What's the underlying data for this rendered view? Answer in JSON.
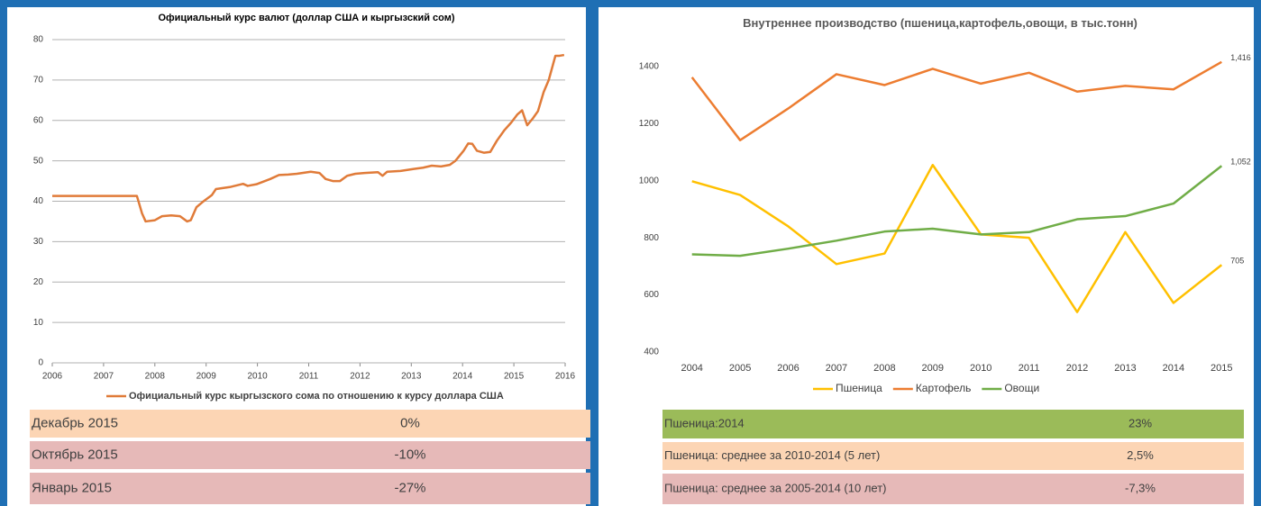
{
  "chart_data": [
    {
      "type": "line",
      "title": "Официальный курс валют (доллар США и кыргызский сом)",
      "legend": "bottom",
      "grid": true,
      "xlim": [
        2006,
        2016
      ],
      "xticks": [
        2006,
        2007,
        2008,
        2009,
        2010,
        2011,
        2012,
        2013,
        2014,
        2015,
        2016
      ],
      "ylim": [
        0,
        80
      ],
      "yticks": [
        0,
        10,
        20,
        30,
        40,
        50,
        60,
        70,
        80
      ],
      "x": [
        2006,
        2007.65,
        2007.75,
        2007.82,
        2008.0,
        2008.14,
        2008.32,
        2008.49,
        2008.63,
        2008.7,
        2008.81,
        2008.93,
        2009.11,
        2009.19,
        2009.46,
        2009.72,
        2009.81,
        2009.98,
        2010.25,
        2010.42,
        2010.6,
        2010.77,
        2011.04,
        2011.21,
        2011.33,
        2011.47,
        2011.61,
        2011.75,
        2011.91,
        2012.09,
        2012.35,
        2012.44,
        2012.53,
        2012.79,
        2013.05,
        2013.23,
        2013.4,
        2013.58,
        2013.75,
        2013.86,
        2014.02,
        2014.11,
        2014.19,
        2014.28,
        2014.42,
        2014.54,
        2014.67,
        2014.81,
        2014.95,
        2015.07,
        2015.16,
        2015.26,
        2015.37,
        2015.47,
        2015.58,
        2015.68,
        2015.81,
        2015.89,
        2015.98
      ],
      "series": [
        {
          "name": "Официальный курс кыргызского сома по отношению к курсу доллара США",
          "color": "#e07b39",
          "values": [
            41.3,
            41.3,
            37,
            35,
            35.3,
            36.3,
            36.5,
            36.3,
            35,
            35.3,
            38.5,
            39.8,
            41.5,
            43,
            43.5,
            44.3,
            43.8,
            44.2,
            45.5,
            46.5,
            46.6,
            46.8,
            47.3,
            47,
            45.5,
            45,
            45,
            46.3,
            46.8,
            47,
            47.2,
            46.3,
            47.3,
            47.5,
            48,
            48.3,
            48.8,
            48.6,
            49,
            50,
            52.5,
            54.3,
            54.2,
            52.5,
            52,
            52.2,
            55,
            57.5,
            59.5,
            61.5,
            62.5,
            58.8,
            60.5,
            62.3,
            67,
            70,
            76,
            76,
            76.2
          ]
        }
      ]
    },
    {
      "type": "line",
      "title": "Внутреннее производство (пшеница,картофель,овощи, в тыс.тонн)",
      "legend": "bottom",
      "grid": false,
      "categories": [
        "2004",
        "2005",
        "2006",
        "2007",
        "2008",
        "2009",
        "2010",
        "2011",
        "2012",
        "2013",
        "2014",
        "2015"
      ],
      "ylim": [
        400,
        1450
      ],
      "yticks": [
        400,
        600,
        800,
        1000,
        1200,
        1400
      ],
      "series": [
        {
          "name": "Пшеница",
          "color": "#ffc000",
          "values": [
            998,
            950,
            840,
            708,
            745,
            1055,
            812,
            800,
            540,
            820,
            572,
            705
          ],
          "value_labels": [
            null,
            null,
            null,
            null,
            null,
            null,
            null,
            null,
            null,
            null,
            null,
            "705"
          ]
        },
        {
          "name": "Картофель",
          "color": "#ed7d31",
          "values": [
            1362,
            1142,
            1253,
            1373,
            1335,
            1392,
            1340,
            1378,
            1312,
            1332,
            1320,
            1416
          ],
          "value_labels": [
            null,
            null,
            null,
            null,
            null,
            null,
            null,
            null,
            null,
            null,
            null,
            "1,416"
          ]
        },
        {
          "name": "Овощи",
          "color": "#70ad47",
          "values": [
            742,
            737,
            762,
            790,
            822,
            832,
            812,
            820,
            865,
            876,
            920,
            1052
          ],
          "value_labels": [
            null,
            null,
            null,
            null,
            null,
            null,
            null,
            null,
            null,
            null,
            null,
            "1,052"
          ]
        }
      ]
    }
  ],
  "tables": [
    {
      "rows": [
        [
          "Декабрь 2015",
          "0%"
        ],
        [
          "Октябрь 2015",
          "-10%"
        ],
        [
          "Январь 2015",
          "-27%"
        ]
      ],
      "colors": [
        "#fcd5b4",
        "#e6b9b8",
        "#e6b9b8"
      ]
    },
    {
      "rows": [
        [
          "Пшеница:2014",
          "23%"
        ],
        [
          "Пшеница: среднее за 2010-2014 (5 лет)",
          "2,5%"
        ],
        [
          "Пшеница: среднее за 2005-2014 (10 лет)",
          "-7,3%"
        ]
      ],
      "colors": [
        "#9bbb59",
        "#fcd5b4",
        "#e6b9b8"
      ]
    }
  ]
}
